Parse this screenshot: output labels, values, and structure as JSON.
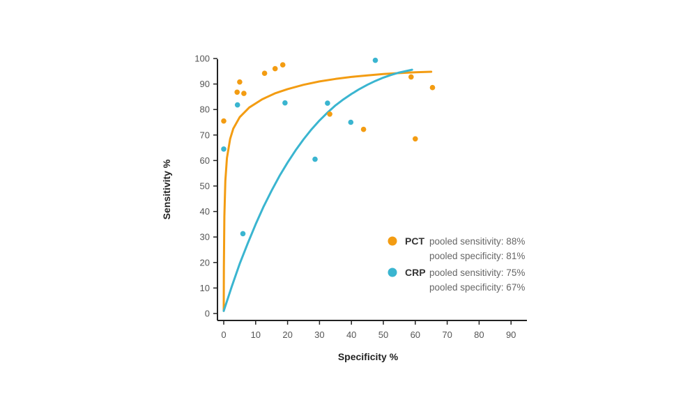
{
  "chart_data": {
    "type": "scatter",
    "title": "",
    "xlabel": "Specificity %",
    "ylabel": "Sensitivity %",
    "xlim": [
      0,
      95
    ],
    "ylim": [
      0,
      100
    ],
    "x_ticks": [
      0,
      10,
      20,
      30,
      40,
      50,
      60,
      70,
      80,
      90
    ],
    "y_ticks": [
      0,
      10,
      20,
      30,
      40,
      50,
      60,
      70,
      80,
      90,
      100
    ],
    "grid": false,
    "legend_position": "bottom-right",
    "series": [
      {
        "name": "PCT",
        "color": "#f39c12",
        "pooled_sensitivity_label": "pooled sensitivity: 88%",
        "pooled_specificity_label": "pooled specificity: 81%",
        "points": [
          {
            "x": 0,
            "y": 75.5
          },
          {
            "x": 4.2,
            "y": 86.8
          },
          {
            "x": 5,
            "y": 90.8
          },
          {
            "x": 6.3,
            "y": 86.3
          },
          {
            "x": 12.8,
            "y": 94.2
          },
          {
            "x": 16.1,
            "y": 96
          },
          {
            "x": 18.5,
            "y": 97.5
          },
          {
            "x": 33.2,
            "y": 78.2
          },
          {
            "x": 43.8,
            "y": 72.2
          },
          {
            "x": 58.7,
            "y": 92.8
          },
          {
            "x": 60,
            "y": 68.5
          },
          {
            "x": 65.4,
            "y": 88.6
          }
        ],
        "curve": [
          {
            "x": 0,
            "y": 1
          },
          {
            "x": 0.05,
            "y": 18
          },
          {
            "x": 0.2,
            "y": 38
          },
          {
            "x": 0.5,
            "y": 52
          },
          {
            "x": 1,
            "y": 61
          },
          {
            "x": 2,
            "y": 68.5
          },
          {
            "x": 3,
            "y": 72.5
          },
          {
            "x": 5,
            "y": 77
          },
          {
            "x": 8,
            "y": 80.8
          },
          {
            "x": 12,
            "y": 84
          },
          {
            "x": 16,
            "y": 86.3
          },
          {
            "x": 20,
            "y": 88
          },
          {
            "x": 25,
            "y": 89.7
          },
          {
            "x": 30,
            "y": 91
          },
          {
            "x": 35,
            "y": 92
          },
          {
            "x": 40,
            "y": 92.8
          },
          {
            "x": 45,
            "y": 93.4
          },
          {
            "x": 50,
            "y": 93.9
          },
          {
            "x": 55,
            "y": 94.3
          },
          {
            "x": 60,
            "y": 94.6
          },
          {
            "x": 65,
            "y": 94.8
          }
        ]
      },
      {
        "name": "CRP",
        "color": "#3ab5d0",
        "pooled_sensitivity_label": "pooled sensitivity: 75%",
        "pooled_specificity_label": "pooled specificity: 67%",
        "points": [
          {
            "x": 0,
            "y": 64.5
          },
          {
            "x": 4.3,
            "y": 81.8
          },
          {
            "x": 6,
            "y": 31.3
          },
          {
            "x": 19.2,
            "y": 82.6
          },
          {
            "x": 28.6,
            "y": 60.5
          },
          {
            "x": 32.5,
            "y": 82.5
          },
          {
            "x": 39.8,
            "y": 75
          },
          {
            "x": 47.5,
            "y": 99.3
          }
        ],
        "curve": [
          {
            "x": 0,
            "y": 1
          },
          {
            "x": 2.5,
            "y": 10.5
          },
          {
            "x": 5,
            "y": 19.5
          },
          {
            "x": 7.5,
            "y": 27.5
          },
          {
            "x": 10,
            "y": 35
          },
          {
            "x": 12.5,
            "y": 42
          },
          {
            "x": 15,
            "y": 48.2
          },
          {
            "x": 17.5,
            "y": 54
          },
          {
            "x": 20,
            "y": 59.2
          },
          {
            "x": 22.5,
            "y": 64
          },
          {
            "x": 25,
            "y": 68.3
          },
          {
            "x": 27.5,
            "y": 72.2
          },
          {
            "x": 30,
            "y": 75.7
          },
          {
            "x": 32.5,
            "y": 78.8
          },
          {
            "x": 35,
            "y": 81.6
          },
          {
            "x": 37.5,
            "y": 84
          },
          {
            "x": 40,
            "y": 86.1
          },
          {
            "x": 42.5,
            "y": 88
          },
          {
            "x": 45,
            "y": 89.7
          },
          {
            "x": 47.5,
            "y": 91.2
          },
          {
            "x": 50,
            "y": 92.5
          },
          {
            "x": 52.5,
            "y": 93.6
          },
          {
            "x": 55,
            "y": 94.5
          },
          {
            "x": 57.5,
            "y": 95.2
          },
          {
            "x": 59,
            "y": 95.6
          }
        ]
      }
    ]
  }
}
